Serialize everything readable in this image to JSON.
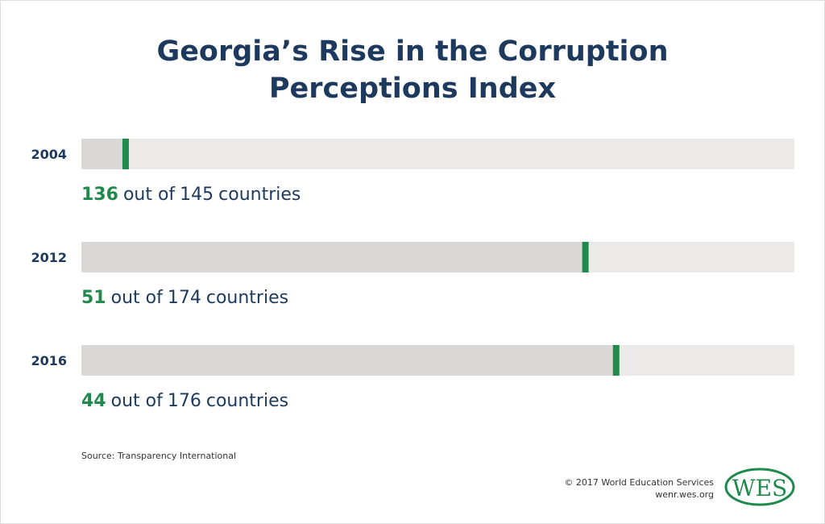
{
  "chart_data": {
    "type": "rank",
    "title": "Georgia’s Rise in the Corruption Perceptions Index",
    "categories": [
      "2004",
      "2012",
      "2016"
    ],
    "ranks": [
      136,
      51,
      44
    ],
    "totals": [
      145,
      174,
      176
    ],
    "connector": "out of",
    "unit": "countries",
    "source": "Source: Transparency International",
    "copyright": "© 2017 World Education Services",
    "website": "wenr.wes.org",
    "logo": "WES",
    "marker_color": "#1f8a4c",
    "filled_color": "#d9d8d6",
    "track_color": "#ebeae8"
  }
}
